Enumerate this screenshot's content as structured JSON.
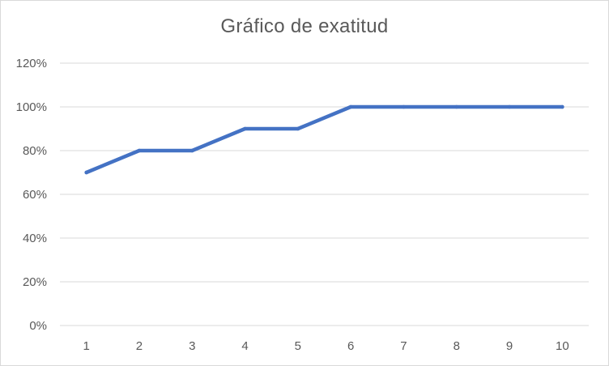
{
  "chart_data": {
    "type": "line",
    "title": "Gráfico de exatitud",
    "xlabel": "",
    "ylabel": "",
    "categories": [
      "1",
      "2",
      "3",
      "4",
      "5",
      "6",
      "7",
      "8",
      "9",
      "10"
    ],
    "series": [
      {
        "values": [
          70,
          80,
          80,
          90,
          90,
          100,
          100,
          100,
          100,
          100
        ],
        "color": "#4472c4"
      }
    ],
    "ylim": [
      0,
      120
    ],
    "yticks": [
      0,
      20,
      40,
      60,
      80,
      100,
      120
    ],
    "ytick_labels": [
      "0%",
      "20%",
      "40%",
      "60%",
      "80%",
      "100%",
      "120%"
    ],
    "grid": true,
    "legend": "none",
    "gridline_color": "#d9d9d9"
  }
}
